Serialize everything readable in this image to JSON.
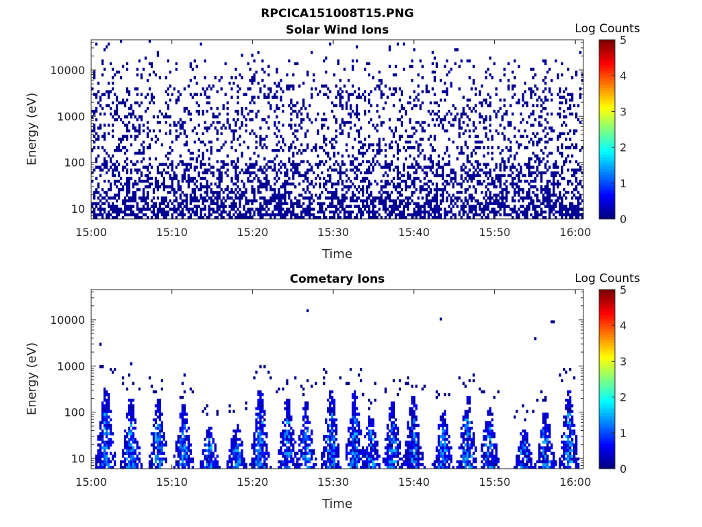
{
  "figure_title": "RPCICA151008T15.PNG",
  "chart_data": [
    {
      "type": "heatmap",
      "title": "Solar Wind Ions",
      "xlabel": "Time",
      "ylabel": "Energy (eV)",
      "x_ticks": [
        "15:00",
        "15:10",
        "15:20",
        "15:30",
        "15:40",
        "15:50",
        "16:00"
      ],
      "x_range_minutes": [
        0,
        61
      ],
      "y_scale": "log",
      "y_ticks": [
        10,
        100,
        1000,
        10000
      ],
      "y_tick_labels": [
        "10",
        "100",
        "1000",
        "10000"
      ],
      "y_range": [
        6,
        45000
      ],
      "colorbar": {
        "label": "Log Counts",
        "range": [
          0,
          5
        ],
        "ticks": [
          "0",
          "1",
          "2",
          "3",
          "4",
          "5"
        ],
        "colormap": "jet"
      },
      "description": "Sparse single-count pixels (log count ~0, dark blue) scattered across all times between ~6 eV and ~30000 eV, densest below ~5000 eV."
    },
    {
      "type": "heatmap",
      "title": "Cometary Ions",
      "xlabel": "Time",
      "ylabel": "Energy (eV)",
      "x_ticks": [
        "15:00",
        "15:10",
        "15:20",
        "15:30",
        "15:40",
        "15:50",
        "16:00"
      ],
      "x_range_minutes": [
        0,
        61
      ],
      "y_scale": "log",
      "y_ticks": [
        10,
        100,
        1000,
        10000
      ],
      "y_tick_labels": [
        "10",
        "100",
        "1000",
        "10000"
      ],
      "y_range": [
        6,
        45000
      ],
      "colorbar": {
        "label": "Log Counts",
        "range": [
          0,
          5
        ],
        "ticks": [
          "0",
          "1",
          "2",
          "3",
          "4",
          "5"
        ],
        "colormap": "jet"
      },
      "bursts": [
        {
          "t": 1.7,
          "emax": 350
        },
        {
          "t": 4.8,
          "emax": 200
        },
        {
          "t": 8.2,
          "emax": 200
        },
        {
          "t": 11.3,
          "emax": 140
        },
        {
          "t": 14.5,
          "emax": 50
        },
        {
          "t": 17.9,
          "emax": 55
        },
        {
          "t": 20.8,
          "emax": 300
        },
        {
          "t": 24.2,
          "emax": 200
        },
        {
          "t": 26.5,
          "emax": 160
        },
        {
          "t": 29.6,
          "emax": 300
        },
        {
          "t": 32.5,
          "emax": 280
        },
        {
          "t": 34.5,
          "emax": 90
        },
        {
          "t": 37.2,
          "emax": 160
        },
        {
          "t": 39.8,
          "emax": 220
        },
        {
          "t": 43.5,
          "emax": 120
        },
        {
          "t": 46.5,
          "emax": 220
        },
        {
          "t": 49.2,
          "emax": 130
        },
        {
          "t": 53.5,
          "emax": 45
        },
        {
          "t": 56.2,
          "emax": 100
        },
        {
          "t": 59.1,
          "emax": 300
        }
      ],
      "isolated_points": [
        {
          "t": 1.0,
          "e": 3000
        },
        {
          "t": 4.9,
          "e": 1150
        },
        {
          "t": 11.5,
          "e": 600
        },
        {
          "t": 26.8,
          "e": 15000
        },
        {
          "t": 43.3,
          "e": 11000
        },
        {
          "t": 54.9,
          "e": 4200
        },
        {
          "t": 56.9,
          "e": 9000
        },
        {
          "t": 57.3,
          "e": 9000
        },
        {
          "t": 35.0,
          "e": 430
        },
        {
          "t": 41.2,
          "e": 390
        }
      ]
    }
  ]
}
